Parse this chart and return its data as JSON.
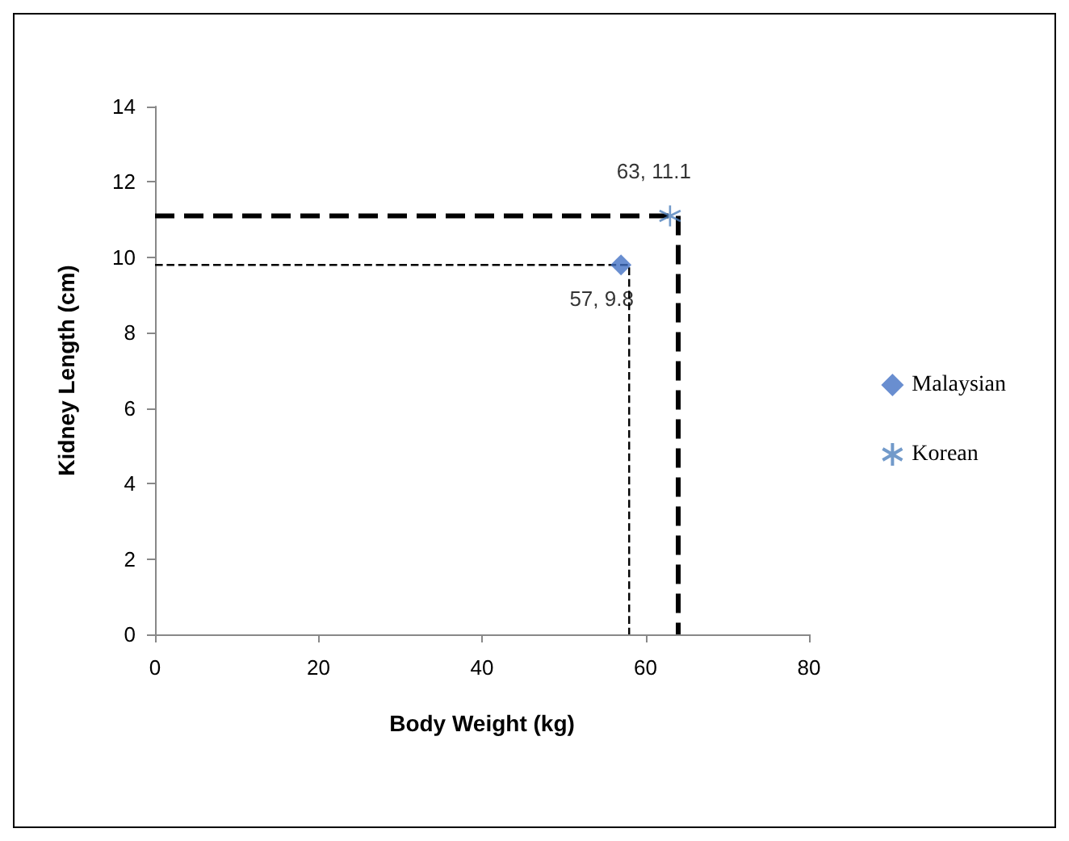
{
  "chart_data": {
    "type": "scatter",
    "xlabel": "Body Weight (kg)",
    "ylabel": "Kidney Length (cm)",
    "xlim": [
      0,
      80
    ],
    "xticks": [
      0,
      20,
      40,
      60,
      80
    ],
    "ylim": [
      0,
      14
    ],
    "yticks": [
      0,
      2,
      4,
      6,
      8,
      10,
      12,
      14
    ],
    "grid": false,
    "legend": "right",
    "series": [
      {
        "name": "Malaysian",
        "color": "#4472c4",
        "marker": "diamond",
        "x": [
          57
        ],
        "values": [
          9.8
        ],
        "value_labels": [
          "57, 9.8"
        ]
      },
      {
        "name": "Korean",
        "color": "#4f81bd",
        "marker": "cross",
        "x": [
          63
        ],
        "values": [
          11.1
        ],
        "value_labels": [
          "63, 11.1"
        ]
      },
      {
        "type": "line",
        "color": "#000000",
        "line_style": "dashed",
        "marker": "none",
        "x": [
          0,
          57,
          58,
          58
        ],
        "values": [
          9.8,
          9.8,
          9.8,
          0
        ]
      },
      {
        "type": "line",
        "color": "#000000",
        "line_style": "dashed",
        "marker": "none",
        "x": [
          0,
          63,
          64,
          64
        ],
        "values": [
          11.1,
          11.1,
          11.1,
          0
        ]
      }
    ]
  }
}
